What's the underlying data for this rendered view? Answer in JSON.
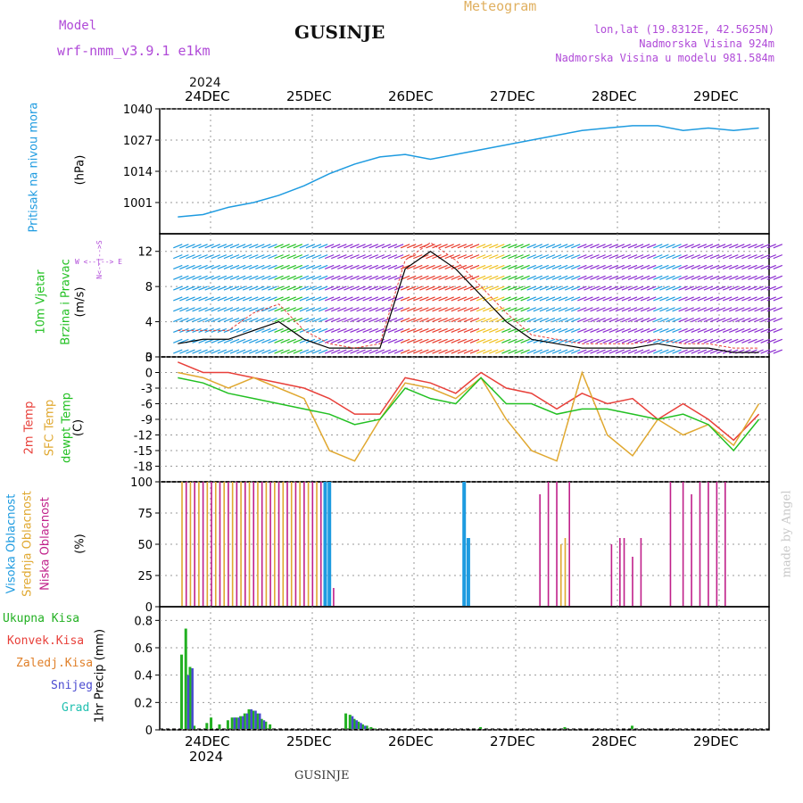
{
  "header": {
    "model_label": "Model",
    "model_name": "wrf-nmm_v3.9.1  e1km",
    "location": "GUSINJE",
    "meteogram_label": "Meteogram",
    "coords": "lon,lat (19.8312E, 42.5625N)",
    "altitude": "Nadmorska Visina 924m",
    "model_altitude": "Nadmorska Visina u modelu 981.584m"
  },
  "footer": {
    "location": "GUSINJE",
    "watermark": "made by Angel"
  },
  "colors": {
    "pressure": "#1e9be0",
    "temp2m": "#e8403a",
    "sfc_temp": "#e0a830",
    "dewpoint": "#22c022",
    "high_cloud": "#1e9be0",
    "mid_cloud": "#e0a830",
    "low_cloud": "#c0208a",
    "total_precip": "#22b022",
    "snow": "#4a4ad0",
    "gust": "#e8403a"
  },
  "time_axis": {
    "year_label": "2024",
    "days": [
      "24DEC",
      "25DEC",
      "26DEC",
      "27DEC",
      "28DEC",
      "29DEC"
    ]
  },
  "panels": {
    "pressure": {
      "label": "Pritisak na nivou mora",
      "unit": "(hPa)"
    },
    "wind": {
      "label1": "10m Vjetar",
      "label2": "Brzina i Pravac",
      "unit": "(m/s)",
      "compass": "W <--|--> E",
      "compass_ns": "N<--|-->S"
    },
    "temp": {
      "label_2m": "2m Temp",
      "label_sfc": "SFC Temp",
      "label_dew": "dewpt Temp",
      "unit": "(C)"
    },
    "cloud": {
      "label_high": "Visoka Oblacnost",
      "label_mid": "Srednja Oblacnost",
      "label_low": "Niska Oblacnost",
      "unit": "(%)"
    },
    "precip": {
      "legend": [
        "Ukupna Kisa",
        "Konvek.Kisa",
        "Zaledj.Kisa",
        "Snijeg",
        "Grad"
      ],
      "unit": "1hr Precip (mm)"
    }
  },
  "chart_data": [
    {
      "type": "line",
      "name": "pressure",
      "ylim": [
        988,
        1040
      ],
      "yticks": [
        1001,
        1014,
        1027,
        1040
      ],
      "x": [
        0,
        6,
        12,
        18,
        24,
        30,
        36,
        42,
        48,
        54,
        60,
        66,
        72,
        78,
        84,
        90,
        96,
        102,
        108,
        114,
        120,
        126,
        132,
        138
      ],
      "values": [
        995,
        996,
        999,
        1001,
        1004,
        1008,
        1013,
        1017,
        1020,
        1021,
        1019,
        1021,
        1023,
        1025,
        1027,
        1029,
        1031,
        1032,
        1033,
        1033,
        1031,
        1032,
        1031,
        1032
      ]
    },
    {
      "type": "line",
      "name": "wind_speed",
      "ylim": [
        0,
        14
      ],
      "yticks": [
        0,
        4,
        8,
        12
      ],
      "x": [
        0,
        6,
        12,
        18,
        24,
        30,
        36,
        42,
        48,
        54,
        60,
        66,
        72,
        78,
        84,
        90,
        96,
        102,
        108,
        114,
        120,
        126,
        132,
        138
      ],
      "values": [
        1.5,
        2,
        2,
        3,
        4,
        2,
        1,
        1,
        1,
        10,
        12,
        10,
        7,
        4,
        2,
        1.5,
        1,
        1,
        1,
        1.5,
        1,
        1,
        0.5,
        0.5
      ],
      "gust": [
        3,
        3,
        3,
        5,
        6,
        3,
        1.5,
        1,
        1.5,
        11,
        13,
        11,
        8,
        5,
        2.5,
        2,
        1.5,
        1.5,
        1.5,
        2,
        1.5,
        1.5,
        1,
        1
      ]
    },
    {
      "type": "line",
      "name": "temperature",
      "ylim": [
        -21,
        3
      ],
      "yticks": [
        3,
        0,
        -3,
        -6,
        -9,
        -12,
        -15,
        -18
      ],
      "x": [
        0,
        6,
        12,
        18,
        24,
        30,
        36,
        42,
        48,
        54,
        60,
        66,
        72,
        78,
        84,
        90,
        96,
        102,
        108,
        114,
        120,
        126,
        132,
        138
      ],
      "series": [
        {
          "name": "2m Temp",
          "values": [
            2,
            0,
            0,
            -1,
            -2,
            -3,
            -5,
            -8,
            -8,
            -1,
            -2,
            -4,
            0,
            -3,
            -4,
            -7,
            -4,
            -6,
            -5,
            -9,
            -6,
            -9,
            -13,
            -8
          ]
        },
        {
          "name": "SFC Temp",
          "values": [
            0,
            -1,
            -3,
            -1,
            -3,
            -5,
            -15,
            -17,
            -9,
            -2,
            -3,
            -5,
            -1,
            -9,
            -15,
            -17,
            0,
            -12,
            -16,
            -9,
            -12,
            -10,
            -14,
            -6
          ]
        },
        {
          "name": "dewpt Temp",
          "values": [
            -1,
            -2,
            -4,
            -5,
            -6,
            -7,
            -8,
            -10,
            -9,
            -3,
            -5,
            -6,
            -1,
            -6,
            -6,
            -8,
            -7,
            -7,
            -8,
            -9,
            -8,
            -10,
            -15,
            -9
          ]
        }
      ]
    },
    {
      "type": "bar",
      "name": "cloud_cover",
      "ylim": [
        0,
        100
      ],
      "yticks": [
        0,
        25,
        50,
        75,
        100
      ],
      "series": [
        {
          "name": "Visoka Oblacnost",
          "x": [
            35,
            36,
            68,
            69
          ],
          "values": [
            100,
            100,
            100,
            55
          ]
        },
        {
          "name": "Srednja Oblacnost",
          "x": [
            1,
            3,
            5,
            7,
            9,
            11,
            13,
            15,
            17,
            19,
            21,
            23,
            25,
            27,
            29,
            31,
            33,
            91,
            92
          ],
          "values": [
            100,
            100,
            100,
            100,
            100,
            100,
            100,
            100,
            100,
            100,
            100,
            100,
            100,
            100,
            100,
            100,
            100,
            50,
            55
          ]
        },
        {
          "name": "Niska Oblacnost",
          "x": [
            2,
            4,
            6,
            8,
            10,
            12,
            14,
            16,
            18,
            20,
            22,
            24,
            26,
            28,
            30,
            32,
            34,
            37,
            86,
            88,
            90,
            93,
            103,
            105,
            106,
            108,
            110,
            117,
            120,
            122,
            124,
            126,
            128,
            130
          ],
          "values": [
            100,
            100,
            100,
            100,
            100,
            100,
            100,
            100,
            100,
            100,
            100,
            100,
            100,
            100,
            100,
            100,
            100,
            15,
            90,
            100,
            100,
            100,
            50,
            55,
            55,
            40,
            55,
            100,
            100,
            90,
            100,
            100,
            100,
            100
          ]
        }
      ]
    },
    {
      "type": "bar",
      "name": "precipitation",
      "ylim": [
        0,
        0.9
      ],
      "yticks": [
        0,
        0.2,
        0.4,
        0.6,
        0.8
      ],
      "series": [
        {
          "name": "Ukupna Kisa",
          "x": [
            1,
            2,
            3,
            4,
            7,
            8,
            10,
            12,
            13,
            14,
            15,
            16,
            17,
            18,
            19,
            20,
            21,
            22,
            40,
            41,
            42,
            43,
            44,
            45,
            46,
            47,
            72,
            92,
            108
          ],
          "values": [
            0.55,
            0.74,
            0.46,
            0.03,
            0.05,
            0.09,
            0.04,
            0.07,
            0.09,
            0.09,
            0.1,
            0.12,
            0.15,
            0.14,
            0.12,
            0.08,
            0.06,
            0.04,
            0.12,
            0.11,
            0.08,
            0.06,
            0.04,
            0.03,
            0.02,
            0.01,
            0.02,
            0.02,
            0.03
          ]
        },
        {
          "name": "Snijeg",
          "x": [
            2,
            3,
            13,
            14,
            15,
            16,
            17,
            18,
            19,
            20,
            41,
            42,
            43,
            44
          ],
          "values": [
            0.4,
            0.45,
            0.09,
            0.09,
            0.1,
            0.12,
            0.15,
            0.14,
            0.12,
            0.07,
            0.1,
            0.07,
            0.05,
            0.03
          ]
        }
      ]
    }
  ]
}
